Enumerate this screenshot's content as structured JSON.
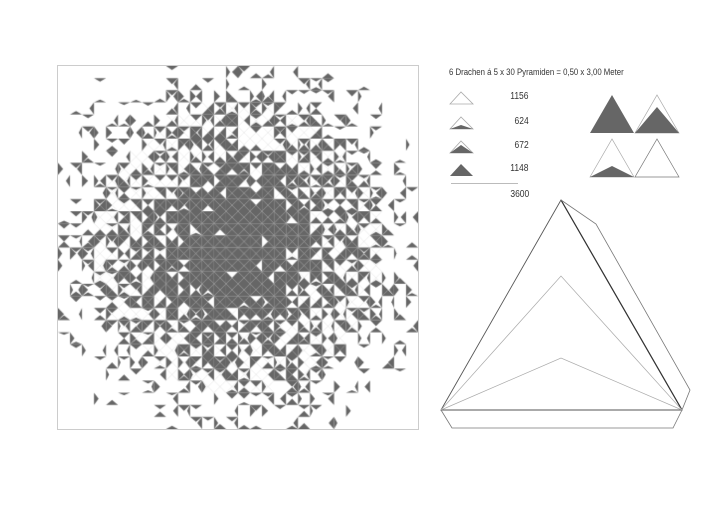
{
  "title": "6 Drachen á 5 x 30 Pyramiden = 0,50 x 3,00 Meter",
  "legend": [
    {
      "icon": "empty-pyramid-icon",
      "count": "1156",
      "fill_level": 0
    },
    {
      "icon": "low-filled-pyramid-icon",
      "count": "624",
      "fill_level": 0.33
    },
    {
      "icon": "mid-filled-pyramid-icon",
      "count": "672",
      "fill_level": 0.66
    },
    {
      "icon": "full-pyramid-icon",
      "count": "1148",
      "fill_level": 1
    }
  ],
  "total": "3600",
  "colors": {
    "fill": "#666666",
    "line": "#999999",
    "background": "#ffffff"
  }
}
